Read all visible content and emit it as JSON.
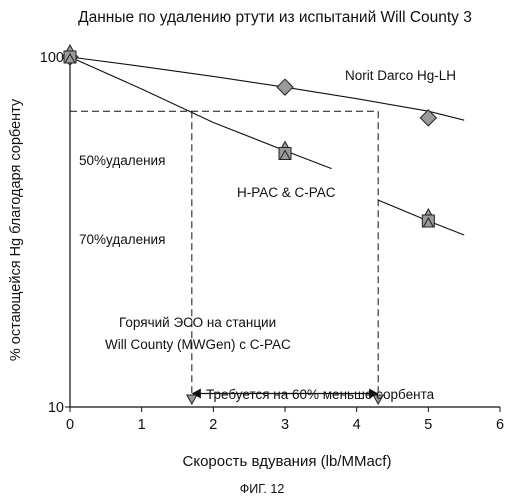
{
  "figure_caption": "ФИГ. 12",
  "colors": {
    "axis": "#111111",
    "marker_fill": "#9a9a9a",
    "marker_stroke": "#222222",
    "background": "#ffffff"
  },
  "chart_data": {
    "type": "scatter",
    "title": "Данные по удалению ртути из испытаний Will County 3",
    "xlabel": "Скорость вдувания (lb/MMacf)",
    "ylabel": "% остающейся Hg благодаря сорбенту",
    "x_scale": "linear",
    "y_scale": "log",
    "xlim": [
      0,
      6
    ],
    "ylim": [
      10,
      100
    ],
    "x_ticks": [
      0,
      1,
      2,
      3,
      4,
      5,
      6
    ],
    "y_ticks": [
      10,
      100
    ],
    "y_tick_labels": [
      "10",
      "100"
    ],
    "grid": false,
    "series": [
      {
        "name": "Norit Darco Hg-LH",
        "marker": "diamond",
        "x": [
          0,
          3,
          5
        ],
        "y": [
          100,
          82,
          67
        ]
      },
      {
        "name": "H-PAC & C-PAC",
        "marker": "square-triangle",
        "x": [
          0,
          3,
          5
        ],
        "y": [
          100,
          53,
          34
        ]
      }
    ],
    "curves": [
      {
        "series": "Norit Darco Hg-LH",
        "x": [
          0,
          1,
          2,
          3,
          4,
          5,
          5.5
        ],
        "y": [
          100,
          94,
          88,
          82,
          76,
          70,
          66
        ]
      },
      {
        "series": "H-PAC & C-PAC",
        "x": [
          0,
          1,
          2,
          3,
          3.65
        ],
        "y": [
          100,
          81,
          65,
          54,
          48
        ]
      },
      {
        "series": "H-PAC & C-PAC",
        "x": [
          4.3,
          5,
          5.5
        ],
        "y": [
          39,
          34,
          31
        ]
      }
    ],
    "annotations": [
      {
        "id": "norit",
        "text": "Norit Darco Hg-LH"
      },
      {
        "id": "hpac",
        "text": "H-PAC & C-PAC"
      },
      {
        "id": "removal50",
        "text": "50%удаления"
      },
      {
        "id": "removal70",
        "text": "70%удаления"
      },
      {
        "id": "hot_eso_1",
        "text": "Горячий ЭСО на станции"
      },
      {
        "id": "hot_eso_2",
        "text": "Will County (MWGen) с C-PAC"
      },
      {
        "id": "needs",
        "text": "Требуется на 60% меньше сорбента"
      }
    ],
    "reference_lines": {
      "horizontal_y": 70,
      "horizontal_xlim": [
        0,
        4.3
      ],
      "vertical_x": [
        1.7,
        4.3
      ]
    },
    "reference_markers": [
      {
        "x": 1.7,
        "y": 10
      },
      {
        "x": 4.3,
        "y": 10
      }
    ],
    "arrow": {
      "x": [
        1.7,
        4.3
      ],
      "y": 11
    }
  }
}
